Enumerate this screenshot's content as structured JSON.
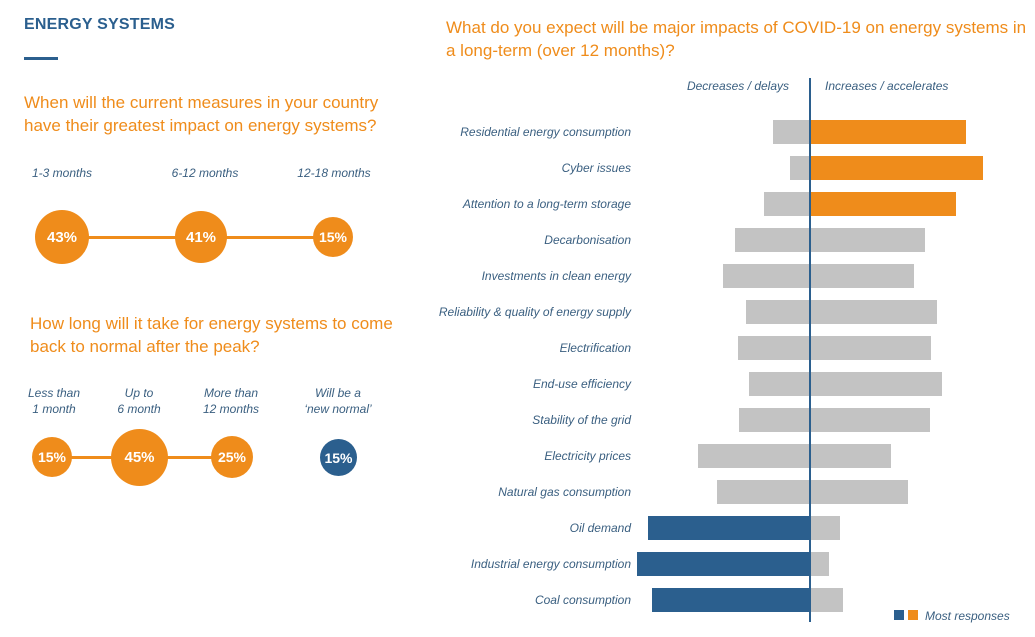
{
  "section_title": "ENERGY SYSTEMS",
  "q1": {
    "question": "When will the current measures in your country have their greatest impact on energy systems?",
    "options": [
      {
        "label": "1-3 months",
        "value": "43%"
      },
      {
        "label": "6-12 months",
        "value": "41%"
      },
      {
        "label": "12-18 months",
        "value": "15%"
      }
    ]
  },
  "q2": {
    "question": "How long will it take for energy systems to come back to normal after the peak?",
    "options": [
      {
        "label_line1": "Less than",
        "label_line2": "1 month",
        "value": "15%"
      },
      {
        "label_line1": "Up to",
        "label_line2": "6 month",
        "value": "45%"
      },
      {
        "label_line1": "More than",
        "label_line2": "12 months",
        "value": "25%"
      },
      {
        "label_line1": "Will be a",
        "label_line2": "‘new normal’",
        "value": "15%"
      }
    ]
  },
  "colors": {
    "orange": "#ef8c1b",
    "blue": "#2b5f8e",
    "grey": "#c3c3c3"
  },
  "chart_data": {
    "type": "bar",
    "orientation": "horizontal-diverging",
    "title": "What do you expect will be major impacts of COVID-19 on energy systems in a long-term (over 12 months)?",
    "left_header": "Decreases / delays",
    "right_header": "Increases / accelerates",
    "categories": [
      "Residential energy consumption",
      "Cyber issues",
      "Attention to a long-term storage",
      "Decarbonisation",
      "Investments in clean energy",
      "Reliability & quality of energy supply",
      "Electrification",
      "End-use efficiency",
      "Stability of the grid",
      "Electricity prices",
      "Natural gas consumption",
      "Oil demand",
      "Industrial energy consumption",
      "Coal consumption"
    ],
    "series": [
      {
        "name": "Decreases / delays",
        "values": [
          37,
          20,
          46,
          75,
          87,
          64,
          72,
          61,
          71,
          112,
          93,
          162,
          173,
          158
        ]
      },
      {
        "name": "Increases / accelerates",
        "values": [
          156,
          173,
          146,
          115,
          104,
          127,
          121,
          132,
          120,
          81,
          98,
          30,
          19,
          33
        ]
      }
    ],
    "most_responses": [
      "increase",
      "increase",
      "increase",
      "none",
      "none",
      "none",
      "none",
      "none",
      "none",
      "none",
      "none",
      "decrease",
      "decrease",
      "decrease"
    ],
    "legend": {
      "label": "Most responses",
      "position": "bottom-right"
    }
  }
}
